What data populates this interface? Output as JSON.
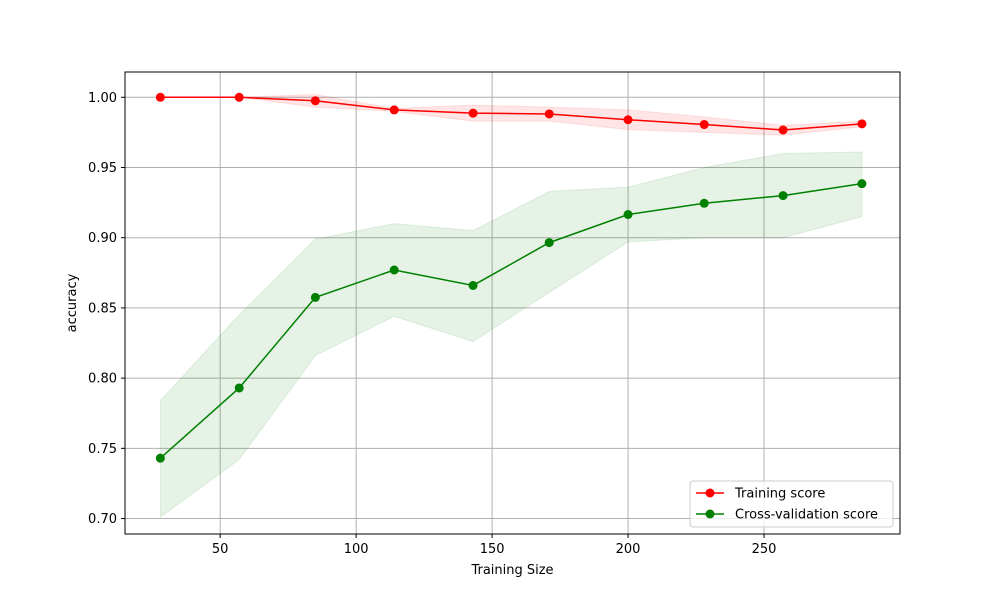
{
  "chart_data": {
    "type": "line",
    "title": "",
    "xlabel": "Training Size",
    "ylabel": "accuracy",
    "xlim": [
      15,
      300
    ],
    "ylim": [
      0.689,
      1.018
    ],
    "xticks": [
      50,
      100,
      150,
      200,
      250
    ],
    "xtick_labels": [
      "50",
      "100",
      "150",
      "200",
      "250"
    ],
    "yticks": [
      0.7,
      0.75,
      0.8,
      0.85,
      0.9,
      0.95,
      1.0
    ],
    "ytick_labels": [
      "0.70",
      "0.75",
      "0.80",
      "0.85",
      "0.90",
      "0.95",
      "1.00"
    ],
    "grid": true,
    "legend_position": "lower-right",
    "x": [
      28,
      57,
      85,
      114,
      143,
      171,
      200,
      228,
      257,
      286
    ],
    "series": [
      {
        "name": "Training score",
        "color": "#ff0000",
        "marker": "circle",
        "values": [
          1.0,
          1.0,
          0.9975,
          0.991,
          0.9887,
          0.9881,
          0.984,
          0.9806,
          0.9767,
          0.9811
        ],
        "band_lower": [
          1.0,
          1.0,
          0.993,
          0.99,
          0.983,
          0.983,
          0.977,
          0.975,
          0.973,
          0.979
        ],
        "band_upper": [
          1.0,
          1.0,
          1.002,
          0.992,
          0.9944,
          0.993,
          0.991,
          0.986,
          0.98,
          0.983
        ],
        "band_color": "#ff0000",
        "band_opacity": 0.1
      },
      {
        "name": "Cross-validation score",
        "color": "#008000",
        "marker": "circle",
        "values": [
          0.743,
          0.793,
          0.8575,
          0.877,
          0.866,
          0.8965,
          0.9165,
          0.9245,
          0.93,
          0.9385
        ],
        "band_lower": [
          0.701,
          0.742,
          0.816,
          0.844,
          0.826,
          0.861,
          0.897,
          0.9,
          0.9,
          0.915
        ],
        "band_upper": [
          0.784,
          0.845,
          0.899,
          0.91,
          0.905,
          0.933,
          0.936,
          0.95,
          0.96,
          0.961
        ],
        "band_color": "#008000",
        "band_opacity": 0.1
      }
    ]
  }
}
